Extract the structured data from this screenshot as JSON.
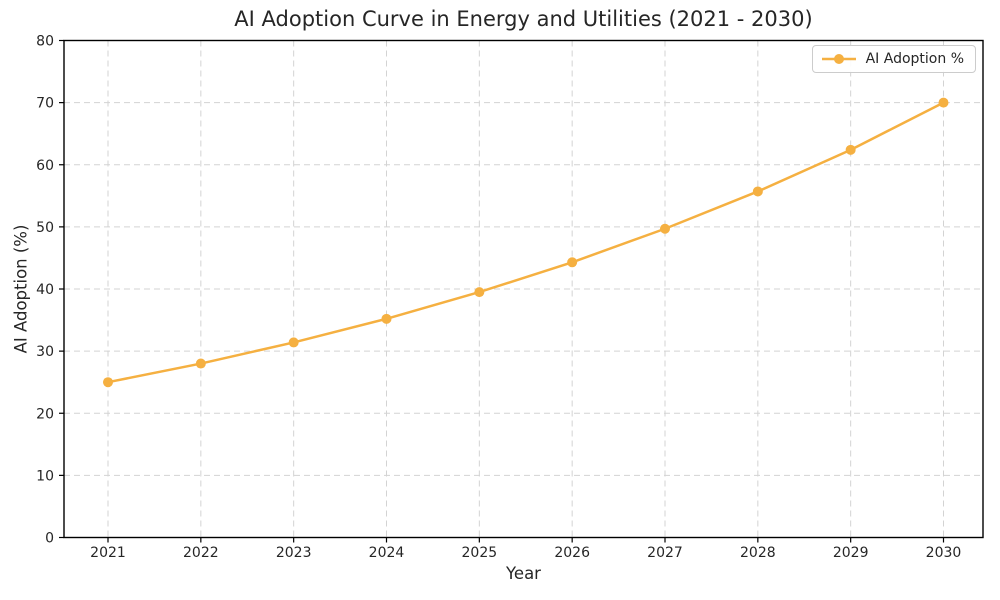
{
  "chart_data": {
    "type": "line",
    "title": "AI Adoption Curve in Energy and Utilities (2021 - 2030)",
    "xlabel": "Year",
    "ylabel": "AI Adoption (%)",
    "categories": [
      "2021",
      "2022",
      "2023",
      "2024",
      "2025",
      "2026",
      "2027",
      "2028",
      "2029",
      "2030"
    ],
    "series": [
      {
        "name": "AI Adoption %",
        "color": "#F5B041",
        "marker": "circle",
        "values": [
          25.0,
          28.0,
          31.4,
          35.2,
          39.5,
          44.3,
          49.7,
          55.7,
          62.4,
          70.0
        ]
      }
    ],
    "ylim": [
      0,
      80
    ],
    "yticks": [
      0,
      10,
      20,
      30,
      40,
      50,
      60,
      70,
      80
    ],
    "grid": "both-dashed",
    "grid_color": "#d3d3d3",
    "spine_color": "#000000",
    "text_color": "#262626",
    "background": "#ffffff",
    "legend_position": "upper-right"
  }
}
